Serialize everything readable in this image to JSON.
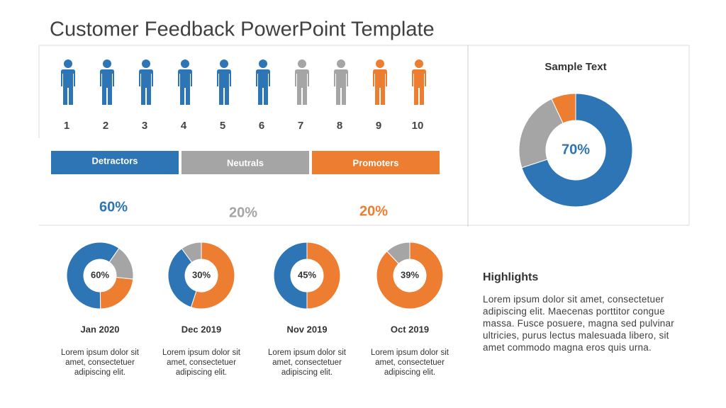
{
  "title": "Customer Feedback PowerPoint Template",
  "people": [
    {
      "number": "1",
      "color": "#2e75b6"
    },
    {
      "number": "2",
      "color": "#2e75b6"
    },
    {
      "number": "3",
      "color": "#2e75b6"
    },
    {
      "number": "4",
      "color": "#2e75b6"
    },
    {
      "number": "5",
      "color": "#2e75b6"
    },
    {
      "number": "6",
      "color": "#2e75b6"
    },
    {
      "number": "7",
      "color": "#a5a5a5"
    },
    {
      "number": "8",
      "color": "#a5a5a5"
    },
    {
      "number": "9",
      "color": "#ed7d31"
    },
    {
      "number": "10",
      "color": "#ed7d31"
    }
  ],
  "groups": [
    {
      "name": "Detractors",
      "percent": "60%",
      "color": "#2e75b6"
    },
    {
      "name": "Neutrals",
      "percent": "20%",
      "color": "#a5a5a5"
    },
    {
      "name": "Promoters",
      "percent": "20%",
      "color": "#ed7d31"
    }
  ],
  "main_chart": {
    "type": "donut",
    "title": "Sample Text",
    "center_label": "70%",
    "values": [
      70,
      23,
      7
    ],
    "colors": [
      "#2e75b6",
      "#a5a5a5",
      "#ed7d31"
    ]
  },
  "donuts": [
    {
      "type": "donut",
      "label": "Jan 2020",
      "center_label": "60%",
      "values": [
        60,
        17,
        23
      ],
      "colors": [
        "#2e75b6",
        "#a5a5a5",
        "#ed7d31"
      ],
      "text": "Lorem ipsum dolor sit amet, consectetuer adipiscing elit."
    },
    {
      "type": "donut",
      "label": "Dec 2019",
      "center_label": "30%",
      "values": [
        55,
        35,
        10
      ],
      "colors": [
        "#ed7d31",
        "#2e75b6",
        "#a5a5a5"
      ],
      "text": "Lorem ipsum dolor sit amet, consectetuer adipiscing elit."
    },
    {
      "type": "donut",
      "label": "Nov 2019",
      "center_label": "45%",
      "values": [
        50,
        50
      ],
      "colors": [
        "#ed7d31",
        "#2e75b6"
      ],
      "text": "Lorem ipsum dolor sit amet, consectetuer adipiscing elit."
    },
    {
      "type": "donut",
      "label": "Oct 2019",
      "center_label": "39%",
      "values": [
        88,
        12
      ],
      "colors": [
        "#ed7d31",
        "#a5a5a5"
      ],
      "text": "Lorem ipsum dolor sit amet, consectetuer adipiscing elit."
    }
  ],
  "highlights": {
    "title": "Highlights",
    "text": "Lorem ipsum dolor sit amet, consectetuer adipiscing elit. Maecenas porttitor congue massa. Fusce posuere, magna sed pulvinar ultricies, purus lectus malesuada libero, sit amet commodo magna eros quis urna."
  }
}
